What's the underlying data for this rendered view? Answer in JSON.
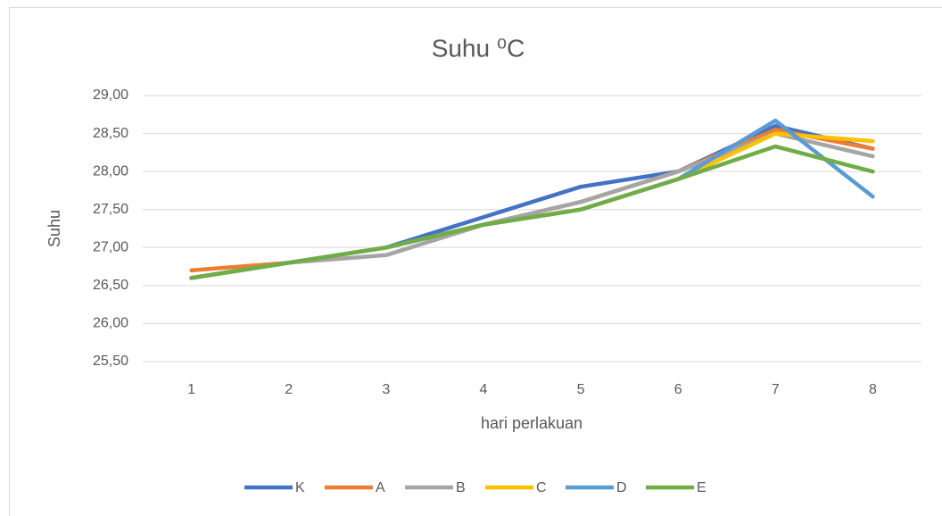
{
  "chart_data": {
    "type": "line",
    "title": "Suhu ⁰C",
    "x_label": "hari perlakuan",
    "y_label": "Suhu",
    "categories": [
      "1",
      "2",
      "3",
      "4",
      "5",
      "6",
      "7",
      "8"
    ],
    "series": [
      {
        "name": "K",
        "color": "#4472c4",
        "values": [
          26.6,
          26.8,
          27.0,
          27.4,
          27.8,
          28.0,
          28.6,
          28.3
        ]
      },
      {
        "name": "A",
        "color": "#ed7d31",
        "values": [
          26.7,
          26.8,
          27.0,
          27.3,
          27.6,
          28.0,
          28.55,
          28.3
        ]
      },
      {
        "name": "B",
        "color": "#a5a5a5",
        "values": [
          26.6,
          26.8,
          26.9,
          27.3,
          27.6,
          28.0,
          28.5,
          28.2
        ]
      },
      {
        "name": "C",
        "color": "#ffc000",
        "values": [
          26.6,
          26.8,
          27.0,
          27.3,
          27.5,
          27.9,
          28.5,
          28.4
        ]
      },
      {
        "name": "D",
        "color": "#5b9bd5",
        "values": [
          26.6,
          26.8,
          27.0,
          27.3,
          27.5,
          27.9,
          28.67,
          27.67
        ]
      },
      {
        "name": "E",
        "color": "#70ad47",
        "values": [
          26.6,
          26.8,
          27.0,
          27.3,
          27.5,
          27.9,
          28.33,
          28.0
        ]
      }
    ],
    "ylim": [
      25.5,
      29.0
    ],
    "yticks": [
      {
        "value": 25.5,
        "label": "25,50"
      },
      {
        "value": 26.0,
        "label": "26,00"
      },
      {
        "value": 26.5,
        "label": "26,50"
      },
      {
        "value": 27.0,
        "label": "27,00"
      },
      {
        "value": 27.5,
        "label": "27,50"
      },
      {
        "value": 28.0,
        "label": "28,00"
      },
      {
        "value": 28.5,
        "label": "28,50"
      },
      {
        "value": 29.0,
        "label": "29,00"
      }
    ],
    "grid": true,
    "legend": "bottom"
  }
}
